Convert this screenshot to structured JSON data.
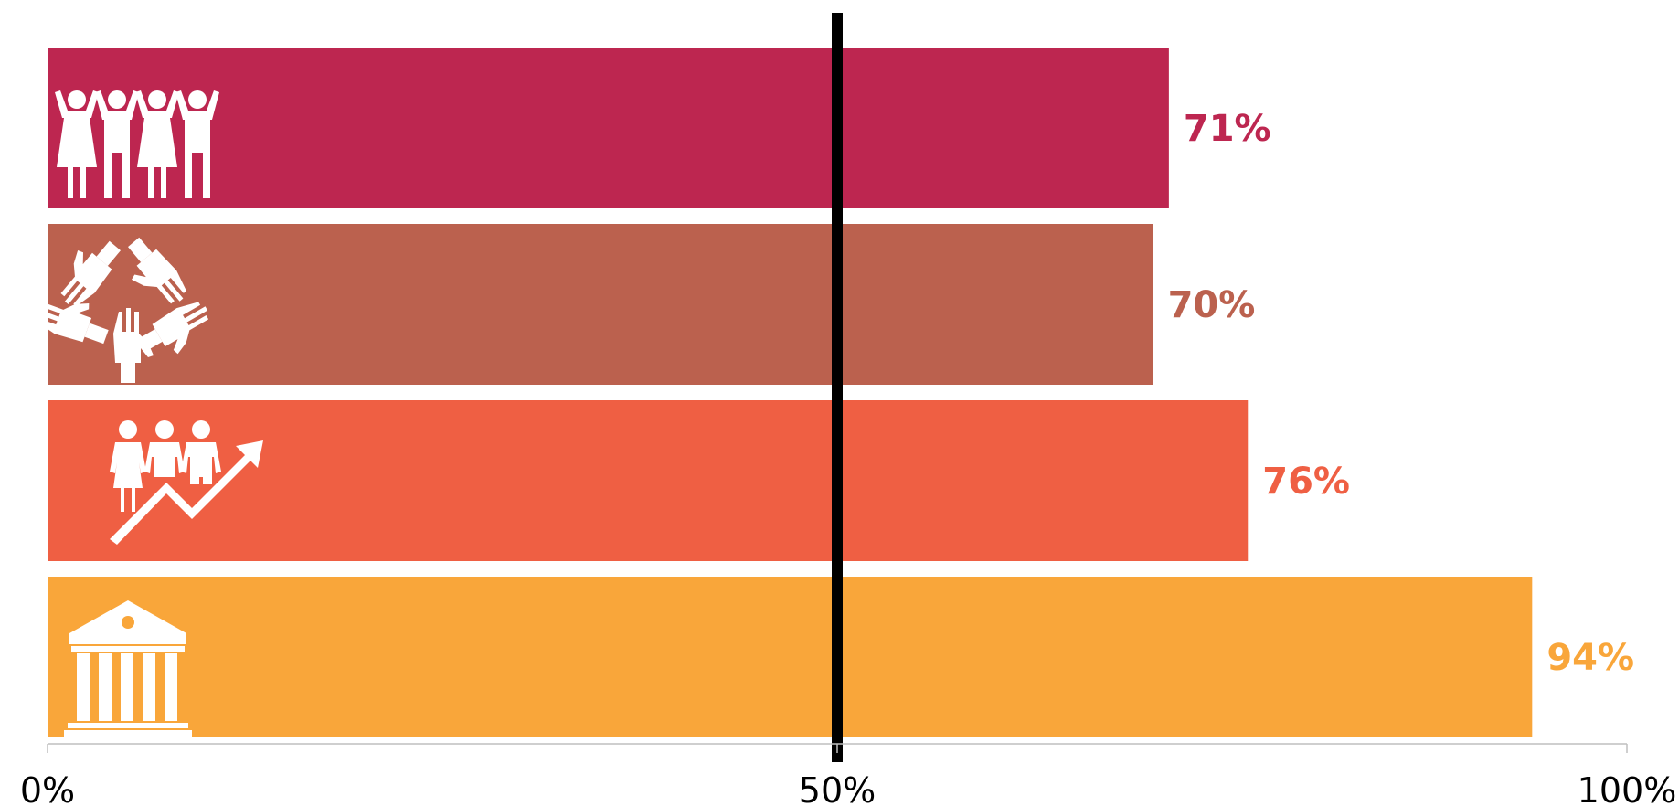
{
  "chart_data": {
    "type": "bar",
    "orientation": "horizontal",
    "xlim": [
      0,
      100
    ],
    "unit": "%",
    "reference_line": 50,
    "x_ticks": [
      "0%",
      "50%",
      "100%"
    ],
    "title": "",
    "xlabel": "",
    "ylabel": "",
    "grid": false,
    "legend": "none",
    "bars": [
      {
        "icon": "people-celebrating-icon",
        "value": 71,
        "label": "71%",
        "color": "#BD2650"
      },
      {
        "icon": "hands-together-icon",
        "value": 70,
        "label": "70%",
        "color": "#BB614E"
      },
      {
        "icon": "people-growth-arrow-icon",
        "value": 76,
        "label": "76%",
        "color": "#EF5F43"
      },
      {
        "icon": "institution-building-icon",
        "value": 94,
        "label": "94%",
        "color": "#F9A63A"
      }
    ]
  }
}
